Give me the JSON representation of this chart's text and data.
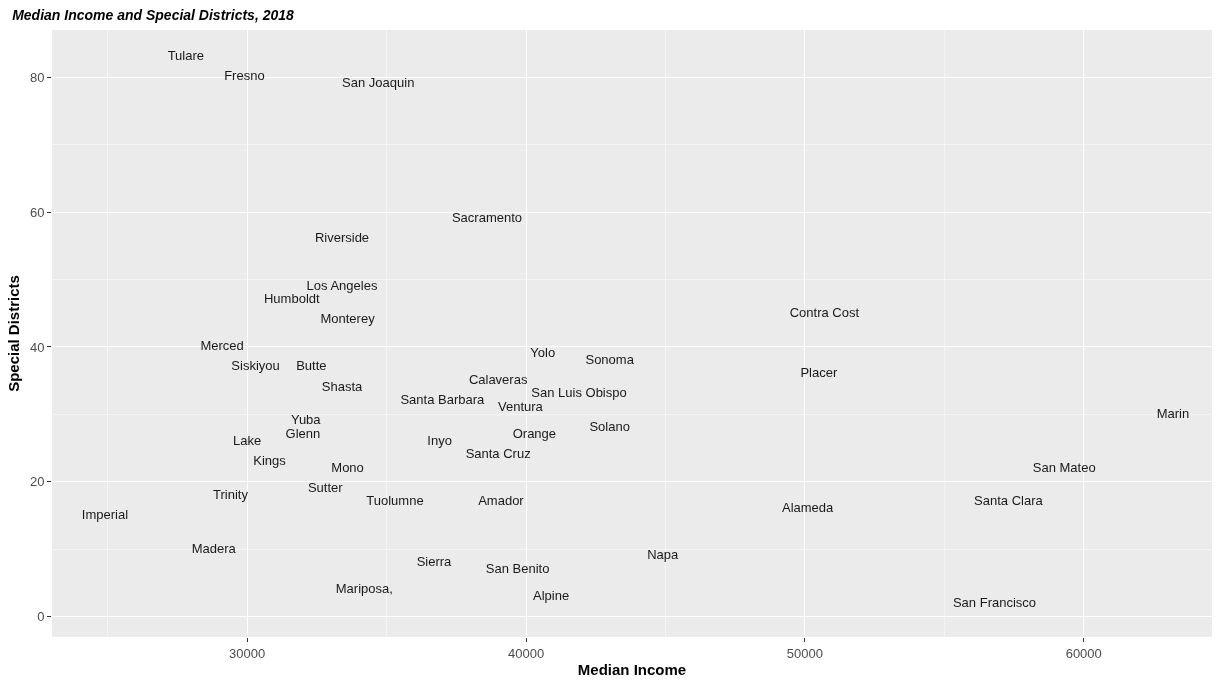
{
  "chart_data": {
    "type": "scatter",
    "title": "Median Income and Special Districts, 2018",
    "xlabel": "Median Income",
    "ylabel": "Special Districts",
    "marker": "none",
    "grid": true,
    "xlim": [
      23000,
      64600
    ],
    "xticks": [
      30000,
      40000,
      50000,
      60000
    ],
    "ylim": [
      -3,
      87
    ],
    "yticks": [
      0,
      20,
      40,
      60,
      80
    ],
    "x": [
      27800,
      29900,
      34700,
      38600,
      33400,
      33400,
      31600,
      33600,
      50700,
      29100,
      40600,
      43000,
      30300,
      32300,
      50500,
      39000,
      33400,
      41900,
      37000,
      39800,
      63200,
      32100,
      43000,
      32000,
      40300,
      30000,
      36900,
      39000,
      30800,
      33600,
      59300,
      32800,
      29400,
      35300,
      39100,
      57300,
      50100,
      24900,
      28800,
      44900,
      36700,
      39700,
      34200,
      40900,
      56800
    ],
    "values": [
      83,
      80,
      79,
      59,
      56,
      49,
      47,
      44,
      45,
      40,
      39,
      38,
      37,
      37,
      36,
      35,
      34,
      33,
      32,
      31,
      30,
      29,
      28,
      27,
      27,
      26,
      26,
      24,
      23,
      22,
      22,
      19,
      18,
      17,
      17,
      17,
      16,
      15,
      10,
      9,
      8,
      7,
      4,
      3,
      2
    ],
    "value_labels": [
      "Tulare",
      "Fresno",
      "San Joaquin",
      "Sacramento",
      "Riverside",
      "Los Angeles",
      "Humboldt",
      "Monterey",
      "Contra Cost",
      "Merced",
      "Yolo",
      "Sonoma",
      "Siskiyou",
      "Butte",
      "Placer",
      "Calaveras",
      "Shasta",
      "San Luis Obispo",
      "Santa Barbara",
      "Ventura",
      "Marin",
      "Yuba",
      "Solano",
      "Glenn",
      "Orange",
      "Lake",
      "Inyo",
      "Santa Cruz",
      "Kings",
      "Mono",
      "San Mateo",
      "Sutter",
      "Trinity",
      "Tuolumne",
      "Amador",
      "Santa Clara",
      "Alameda",
      "Imperial",
      "Madera",
      "Napa",
      "Sierra",
      "San Benito",
      "Mariposa,",
      "Alpine",
      "San Francisco"
    ]
  }
}
